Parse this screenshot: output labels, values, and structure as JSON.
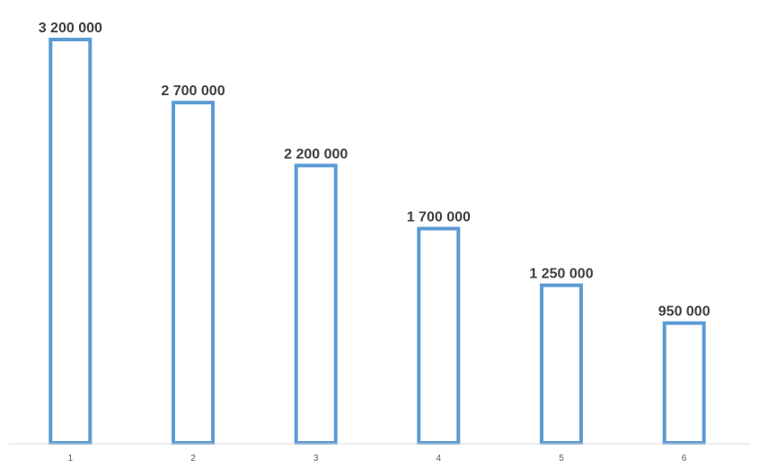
{
  "chart_data": {
    "type": "bar",
    "categories": [
      "1",
      "2",
      "3",
      "4",
      "5",
      "6"
    ],
    "values": [
      3200000,
      2700000,
      2200000,
      1700000,
      1250000,
      950000
    ],
    "data_labels": [
      "3 200 000",
      "2 700 000",
      "2 200 000",
      "1 700 000",
      "1 250 000",
      "950 000"
    ],
    "ylim": [
      0,
      3200000
    ],
    "grid": false,
    "legend": "none",
    "bar_style": "outline",
    "colors": {
      "bar_outline": "#5b9bd5",
      "data_label": "#3f3f3f",
      "tick_label": "#595959",
      "axis_line": "#d9d9d9"
    }
  }
}
